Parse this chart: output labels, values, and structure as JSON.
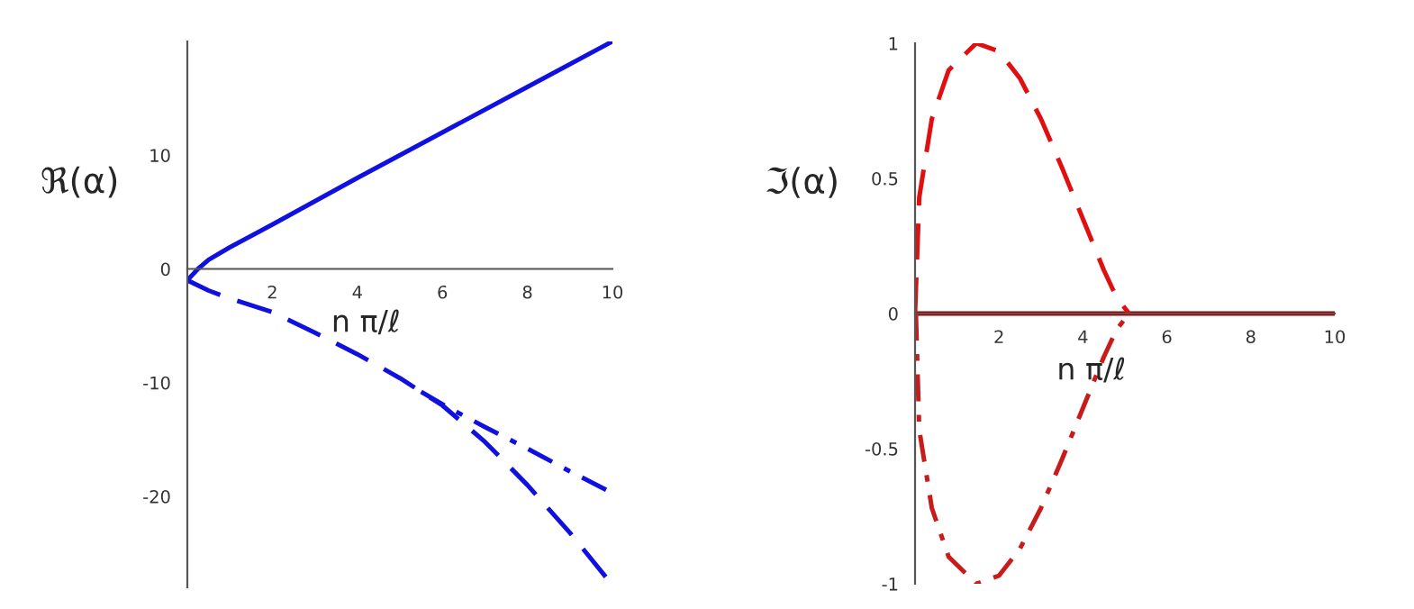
{
  "chart_data": [
    {
      "type": "line",
      "xlabel": "n π/ℓ",
      "ylabel": "ℜ(α)",
      "xlim": [
        0,
        10
      ],
      "ylim": [
        -28,
        20
      ],
      "xticks": [
        2,
        4,
        6,
        8,
        10
      ],
      "yticks": [
        -20,
        -10,
        0,
        10
      ],
      "grid": false,
      "legend": false,
      "series": [
        {
          "color": "#1010e0",
          "line_style": "solid",
          "x": [
            0,
            0.25,
            0.5,
            1,
            2,
            4,
            6,
            8,
            10
          ],
          "values": [
            -1,
            0,
            0.8,
            1.9,
            3.9,
            8,
            12,
            16,
            20
          ]
        },
        {
          "color": "#1010e0",
          "line_style": "dashed",
          "x": [
            0,
            0.5,
            1,
            2,
            3,
            4,
            5,
            6,
            7,
            8,
            9,
            10
          ],
          "values": [
            -1,
            -1.9,
            -2.6,
            -3.8,
            -5.6,
            -7.5,
            -9.6,
            -12,
            -15.2,
            -19,
            -23.2,
            -27.8
          ]
        },
        {
          "color": "#1010e0",
          "line_style": "dashdot",
          "x": [
            5.5,
            6,
            7,
            8,
            9,
            10
          ],
          "values": [
            -10.8,
            -11.9,
            -13.9,
            -15.8,
            -17.8,
            -19.7
          ]
        }
      ]
    },
    {
      "type": "line",
      "xlabel": "n π/ℓ",
      "ylabel": "ℑ(α)",
      "xlim": [
        0,
        10
      ],
      "ylim": [
        -1,
        1
      ],
      "xticks": [
        2,
        4,
        6,
        8,
        10
      ],
      "yticks": [
        -1,
        -0.5,
        0,
        0.5,
        1
      ],
      "grid": false,
      "legend": false,
      "series": [
        {
          "color": "#a00000",
          "line_style": "solid",
          "x": [
            0,
            10
          ],
          "values": [
            0,
            0
          ]
        },
        {
          "color": "#e01010",
          "line_style": "dashed",
          "x": [
            0,
            0.1,
            0.4,
            0.8,
            1.46,
            2,
            2.5,
            3,
            3.5,
            4,
            4.5,
            4.8,
            5.1
          ],
          "values": [
            0,
            0.43,
            0.72,
            0.9,
            1.0,
            0.97,
            0.87,
            0.72,
            0.54,
            0.35,
            0.16,
            0.06,
            0
          ]
        },
        {
          "color": "#c81c1c",
          "line_style": "dashdot",
          "x": [
            0.02,
            0.1,
            0.4,
            0.8,
            1.46,
            2,
            2.5,
            3,
            3.5,
            4,
            4.5,
            4.8,
            5.1
          ],
          "values": [
            0,
            -0.43,
            -0.72,
            -0.9,
            -1.0,
            -0.97,
            -0.87,
            -0.72,
            -0.54,
            -0.35,
            -0.16,
            -0.06,
            0
          ]
        }
      ]
    }
  ]
}
